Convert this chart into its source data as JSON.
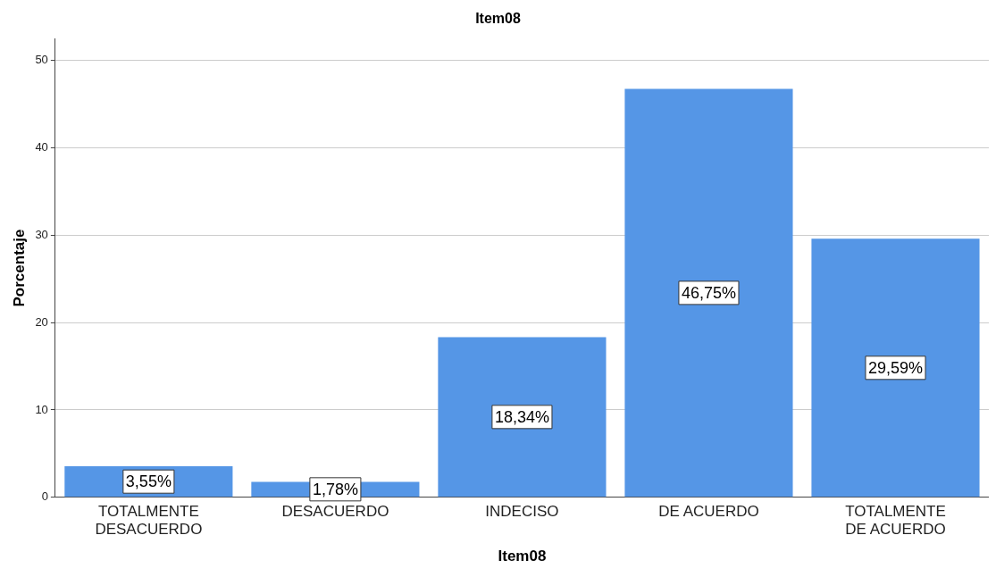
{
  "chart_data": {
    "type": "bar",
    "title": "Item08",
    "xlabel": "Item08",
    "ylabel": "Porcentaje",
    "categories": [
      "TOTALMENTE DESACUERDO",
      "DESACUERDO",
      "INDECISO",
      "DE ACUERDO",
      "TOTALMENTE DE ACUERDO"
    ],
    "values": [
      3.55,
      1.78,
      18.34,
      46.75,
      29.59
    ],
    "value_labels": [
      "3,55%",
      "1,78%",
      "18,34%",
      "46,75%",
      "29,59%"
    ],
    "color": "#5596e6",
    "ylim": [
      0,
      52.5
    ],
    "yticks": [
      0,
      10,
      20,
      30,
      40,
      50
    ],
    "grid": "y",
    "legend": false
  }
}
